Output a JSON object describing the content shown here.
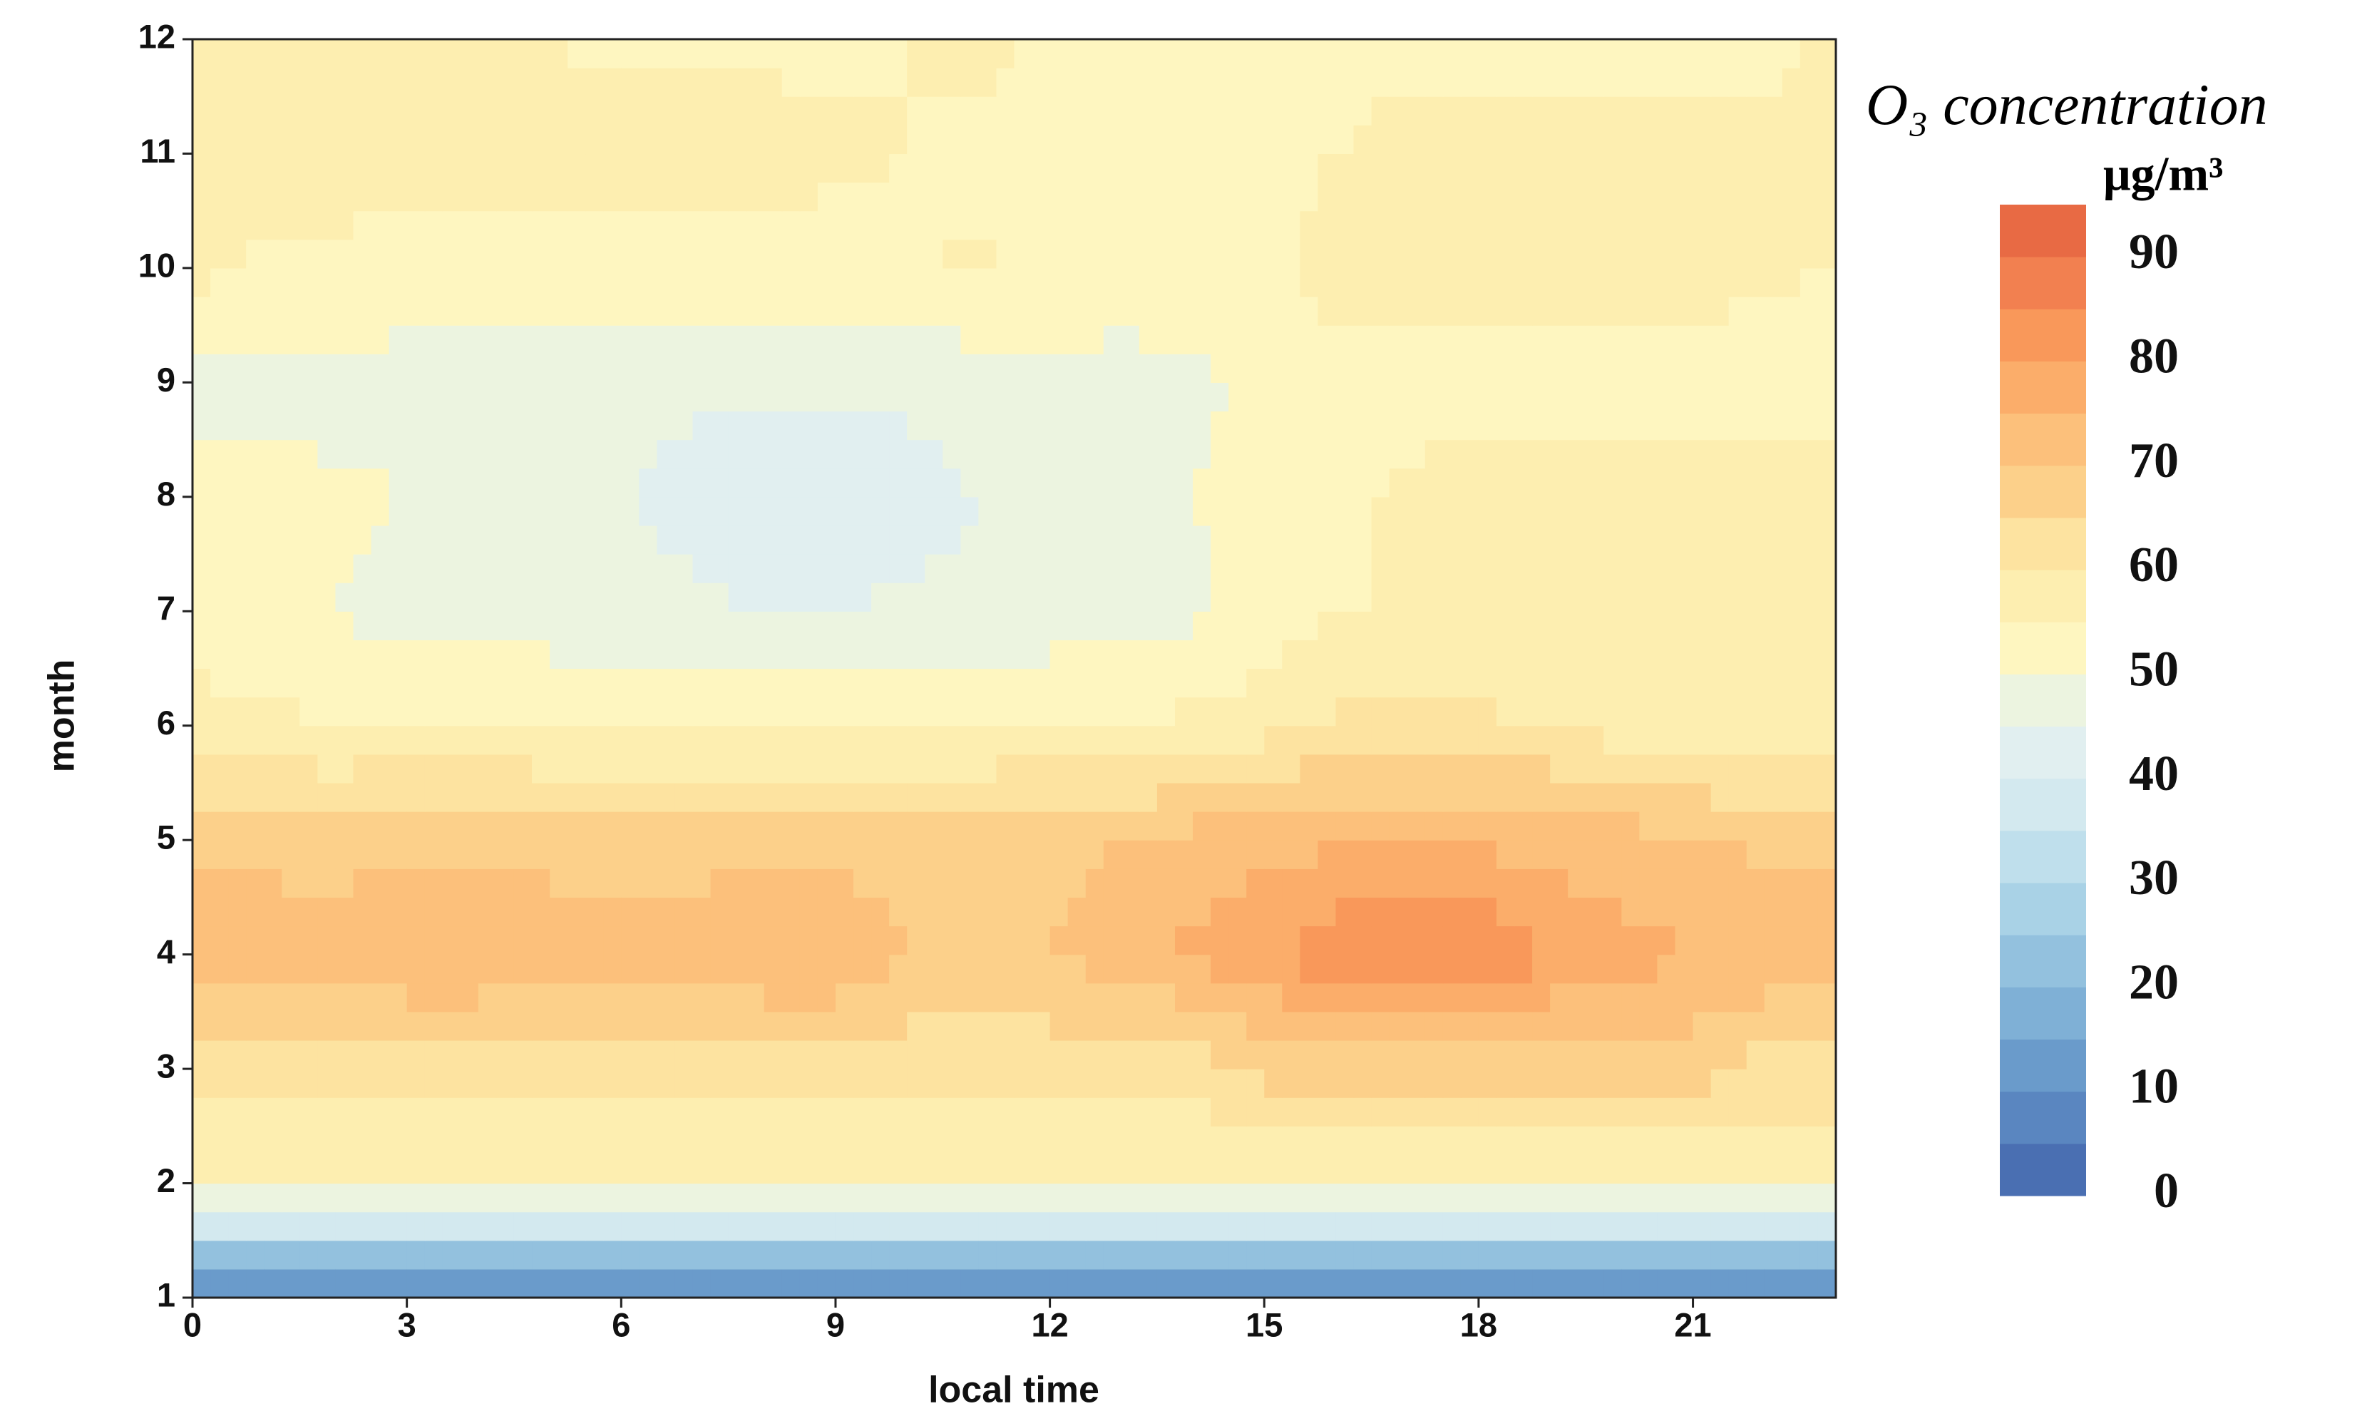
{
  "chart_data": {
    "type": "contour",
    "xlabel": "local time",
    "ylabel": "month",
    "colorbar_title": "O₃ concentration",
    "colorbar_unit": "μg/m³",
    "x": [
      0,
      1,
      2,
      3,
      4,
      5,
      6,
      7,
      8,
      9,
      10,
      11,
      12,
      13,
      14,
      15,
      16,
      17,
      18,
      19,
      20,
      21,
      22,
      23
    ],
    "y": [
      1,
      2,
      3,
      4,
      5,
      6,
      7,
      8,
      9,
      10,
      11,
      12
    ],
    "z": [
      [
        5,
        5,
        5,
        5,
        5,
        5,
        5,
        5,
        5,
        5,
        5,
        5,
        5,
        5,
        5,
        5,
        5,
        5,
        5,
        5,
        5,
        5,
        5,
        5
      ],
      [
        55,
        55,
        55,
        55,
        55,
        55,
        55,
        55,
        55,
        55,
        55,
        55,
        55,
        55,
        55,
        55,
        55,
        55,
        55,
        55,
        55,
        55,
        55,
        55
      ],
      [
        62,
        62,
        62,
        62,
        62,
        62,
        62,
        62,
        62,
        62,
        62,
        62,
        62,
        62,
        62,
        67,
        67,
        67,
        67,
        67,
        67,
        67,
        63,
        63
      ],
      [
        74,
        74,
        72,
        75,
        75,
        73,
        72,
        73,
        75,
        75,
        70,
        69,
        70,
        72,
        76,
        79,
        84,
        86,
        85,
        80,
        77,
        75,
        74,
        74
      ],
      [
        68,
        68,
        68,
        69,
        69,
        68,
        68,
        68,
        68,
        68,
        68,
        68,
        69,
        70,
        72,
        73,
        74,
        74,
        74,
        73,
        72,
        70,
        69,
        69
      ],
      [
        57,
        56,
        55,
        55,
        55,
        55,
        54,
        54,
        54,
        54,
        54,
        55,
        55,
        55,
        56,
        58,
        61,
        61,
        61,
        60,
        58,
        57,
        57,
        57
      ],
      [
        52,
        51,
        50,
        48,
        47,
        47,
        47,
        46,
        45,
        45,
        46,
        46,
        47,
        48,
        49,
        52,
        55,
        55,
        55,
        55,
        55,
        55,
        55,
        55
      ],
      [
        52,
        52,
        51,
        50,
        49,
        48,
        45,
        43,
        41,
        40,
        43,
        45,
        47,
        49,
        50,
        52,
        54,
        56,
        57,
        57,
        58,
        58,
        58,
        58
      ],
      [
        47,
        48,
        48,
        48,
        47,
        47,
        47,
        46,
        46,
        46,
        46,
        47,
        48,
        48,
        49,
        51,
        53,
        53,
        53,
        53,
        53,
        53,
        52,
        52
      ],
      [
        57,
        54,
        54,
        53,
        53,
        53,
        53,
        53,
        53,
        53,
        54,
        56,
        54,
        53,
        53,
        53,
        57,
        58,
        58,
        58,
        57,
        57,
        56,
        55
      ],
      [
        57,
        57,
        57,
        57,
        57,
        57,
        57,
        57,
        57,
        56,
        55,
        53,
        53,
        53,
        53,
        54,
        55,
        57,
        57,
        57,
        57,
        57,
        57,
        56
      ],
      [
        57,
        57,
        57,
        57,
        56,
        55,
        54,
        54,
        54,
        54,
        55,
        57,
        54,
        53,
        53,
        53,
        53,
        53,
        53,
        53,
        53,
        53,
        53,
        56
      ]
    ],
    "levels": [
      0,
      5,
      10,
      15,
      20,
      25,
      30,
      35,
      40,
      45,
      50,
      55,
      60,
      65,
      70,
      75,
      80,
      85,
      90,
      95
    ],
    "colors": [
      "#4a6fb2",
      "#5a86c0",
      "#6a9bcb",
      "#7fb0d6",
      "#93c1de",
      "#a9d2e6",
      "#bfdfec",
      "#d3e9ef",
      "#e1eff0",
      "#ecf4e0",
      "#fef6c0",
      "#fdeeb0",
      "#fde3a0",
      "#fcd08a",
      "#fcc07b",
      "#fbad6a",
      "#f9985a",
      "#f28050",
      "#e86a44"
    ],
    "cticks": [
      0,
      10,
      20,
      30,
      40,
      50,
      60,
      70,
      80,
      90
    ],
    "xlim": [
      0,
      23
    ],
    "xticks": [
      0,
      3,
      6,
      9,
      12,
      15,
      18,
      21
    ],
    "ylim": [
      1,
      12
    ],
    "yticks": [
      1,
      2,
      3,
      4,
      5,
      6,
      7,
      8,
      9,
      10,
      11,
      12
    ]
  }
}
